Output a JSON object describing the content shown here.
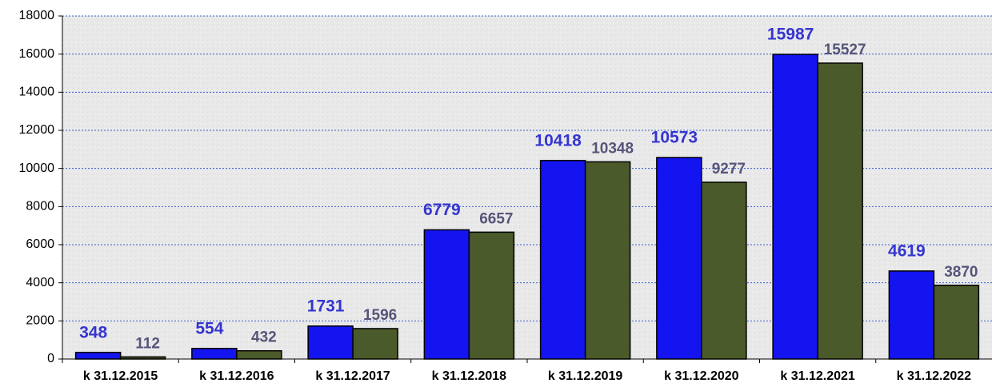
{
  "chart_data": {
    "type": "bar",
    "categories": [
      "k 31.12.2015",
      "k 31.12.2016",
      "k 31.12.2017",
      "k 31.12.2018",
      "k 31.12.2019",
      "k 31.12.2020",
      "k 31.12.2021",
      "k 31.12.2022"
    ],
    "series": [
      {
        "color": "#1414f0",
        "values": [
          348,
          554,
          1731,
          6779,
          10418,
          10573,
          15987,
          4619
        ]
      },
      {
        "color": "#4b5a2a",
        "values": [
          112,
          432,
          1596,
          6657,
          10348,
          9277,
          15527,
          3870
        ]
      }
    ],
    "label_colors": [
      "#3535d0",
      "#55557a"
    ],
    "ylim": [
      0,
      18000
    ],
    "yticks": [
      0,
      2000,
      4000,
      6000,
      8000,
      10000,
      12000,
      14000,
      16000,
      18000
    ],
    "grid": true
  }
}
